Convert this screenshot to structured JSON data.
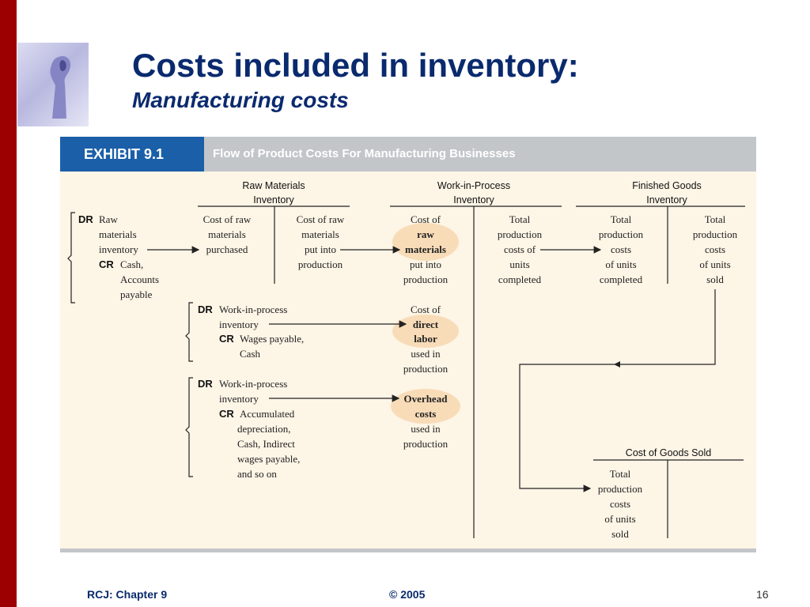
{
  "slide": {
    "title": "Costs included in inventory:",
    "subtitle": "Manufacturing costs",
    "footer_left": "RCJ: Chapter 9",
    "footer_center": "© 2005",
    "page_number": "16",
    "accent_color": "#9c0000",
    "title_color": "#0a2a6e"
  },
  "exhibit": {
    "label": "EXHIBIT 9.1",
    "heading": "Flow of Product Costs For Manufacturing Businesses",
    "accounts": {
      "raw_materials": [
        "Raw Materials",
        "Inventory"
      ],
      "wip": [
        "Work-in-Process",
        "Inventory"
      ],
      "finished_goods": [
        "Finished Goods",
        "Inventory"
      ],
      "cogs": [
        "Cost of Goods Sold"
      ]
    },
    "entries": {
      "rm": {
        "dr": "DR",
        "cr": "CR",
        "dr_lines": [
          "Raw",
          "materials",
          "inventory"
        ],
        "cr_lines": [
          "Cash,",
          "Accounts",
          "payable"
        ]
      },
      "dl": {
        "dr": "DR",
        "cr": "CR",
        "dr_lines": [
          "Work-in-process",
          "inventory"
        ],
        "cr_lines": [
          "Wages payable,",
          "Cash"
        ]
      },
      "oh": {
        "dr": "DR",
        "cr": "CR",
        "dr_lines": [
          "Work-in-process",
          "inventory"
        ],
        "cr_lines": [
          "Accumulated",
          "depreciation,",
          "Cash, Indirect",
          "wages payable,",
          "and so on"
        ]
      }
    },
    "cells": {
      "rm_dr": [
        "Cost of raw",
        "materials",
        "purchased"
      ],
      "rm_cr": [
        "Cost of raw",
        "materials",
        "put into",
        "production"
      ],
      "wip_raw": [
        "Cost of",
        "raw",
        "materials",
        "put into",
        "production"
      ],
      "wip_labor": [
        "Cost of",
        "direct",
        "labor",
        "used in",
        "production"
      ],
      "wip_oh": [
        "Overhead",
        "costs",
        "used in",
        "production"
      ],
      "wip_cr": [
        "Total",
        "production",
        "costs of",
        "units",
        "completed"
      ],
      "fg_dr": [
        "Total",
        "production",
        "costs",
        "of units",
        "completed"
      ],
      "fg_cr": [
        "Total",
        "production",
        "costs",
        "of units",
        "sold"
      ],
      "cogs_dr": [
        "Total",
        "production",
        "costs",
        "of units",
        "sold"
      ]
    },
    "highlight_color": "#f8dcb8"
  }
}
